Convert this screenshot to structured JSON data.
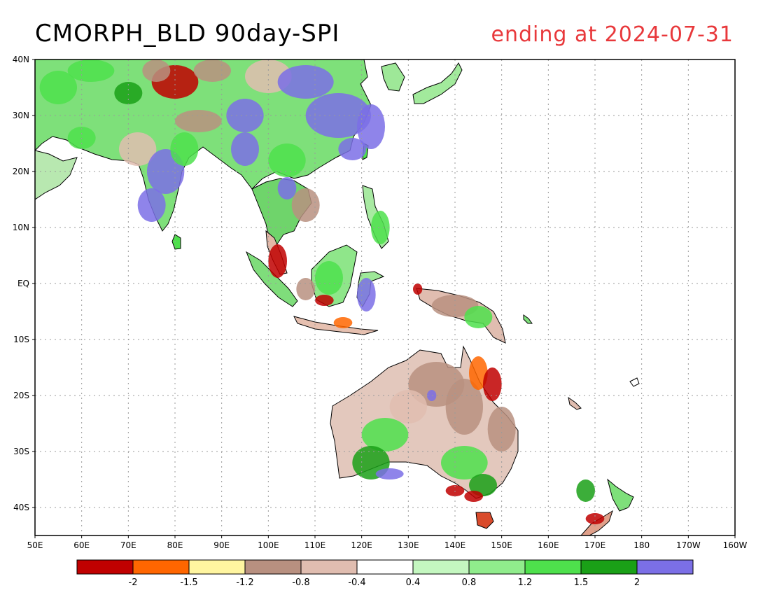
{
  "title": "CMORPH_BLD 90day-SPI",
  "subtitle": "ending at 2024-07-31",
  "map": {
    "lon_range": [
      50,
      200
    ],
    "lat_range": [
      -45,
      40
    ],
    "lat_ticks": [
      {
        "lat": 40,
        "label": "40N"
      },
      {
        "lat": 30,
        "label": "30N"
      },
      {
        "lat": 20,
        "label": "20N"
      },
      {
        "lat": 10,
        "label": "10N"
      },
      {
        "lat": 0,
        "label": "EQ"
      },
      {
        "lat": -10,
        "label": "10S"
      },
      {
        "lat": -20,
        "label": "20S"
      },
      {
        "lat": -30,
        "label": "30S"
      },
      {
        "lat": -40,
        "label": "40S"
      }
    ],
    "lon_ticks": [
      {
        "lon": 50,
        "label": "50E"
      },
      {
        "lon": 60,
        "label": "60E"
      },
      {
        "lon": 70,
        "label": "70E"
      },
      {
        "lon": 80,
        "label": "80E"
      },
      {
        "lon": 90,
        "label": "90E"
      },
      {
        "lon": 100,
        "label": "100E"
      },
      {
        "lon": 110,
        "label": "110E"
      },
      {
        "lon": 120,
        "label": "120E"
      },
      {
        "lon": 130,
        "label": "130E"
      },
      {
        "lon": 140,
        "label": "140E"
      },
      {
        "lon": 150,
        "label": "150E"
      },
      {
        "lon": 160,
        "label": "160E"
      },
      {
        "lon": 170,
        "label": "170E"
      },
      {
        "lon": 180,
        "label": "180"
      },
      {
        "lon": 190,
        "label": "170W"
      },
      {
        "lon": 200,
        "label": "160W"
      }
    ],
    "grid_lines": "dotted"
  },
  "colorbar": {
    "colors": [
      "#c00000",
      "#ff6600",
      "#fff5a0",
      "#b89080",
      "#e0bdb0",
      "#ffffff",
      "#c4f7c0",
      "#90ec8c",
      "#4ee04c",
      "#1aa017",
      "#7b6fe6"
    ],
    "labels": [
      "-2",
      "-1.5",
      "-1.2",
      "-0.8",
      "-0.4",
      "0.4",
      "0.8",
      "1.2",
      "1.5",
      "2"
    ]
  }
}
